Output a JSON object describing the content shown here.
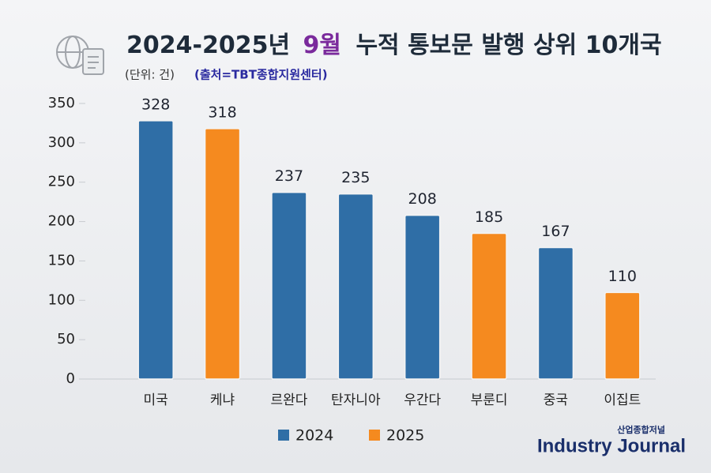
{
  "chart_data": {
    "type": "bar",
    "title": [
      "2024-2025년",
      "9월",
      "누적 통보문 발행 상위 10개국"
    ],
    "unit": "(단위: 건)",
    "source": "(출처=TBT종합지원센터)",
    "categories": [
      "미국",
      "케냐",
      "르완다",
      "탄자니아",
      "우간다",
      "부룬디",
      "중국",
      "이집트"
    ],
    "series": [
      {
        "name": "2024",
        "color": "#2f6ea6",
        "values": [
          328,
          null,
          237,
          235,
          208,
          null,
          167,
          null
        ]
      },
      {
        "name": "2025",
        "color": "#f58a1f",
        "values": [
          null,
          318,
          null,
          null,
          null,
          185,
          null,
          110
        ]
      }
    ],
    "ylim": [
      0,
      350
    ],
    "yticks": [
      0,
      50,
      100,
      150,
      200,
      250,
      300,
      350
    ],
    "logo": {
      "korean": "산업종합저널",
      "english": "Industry Journal"
    }
  }
}
